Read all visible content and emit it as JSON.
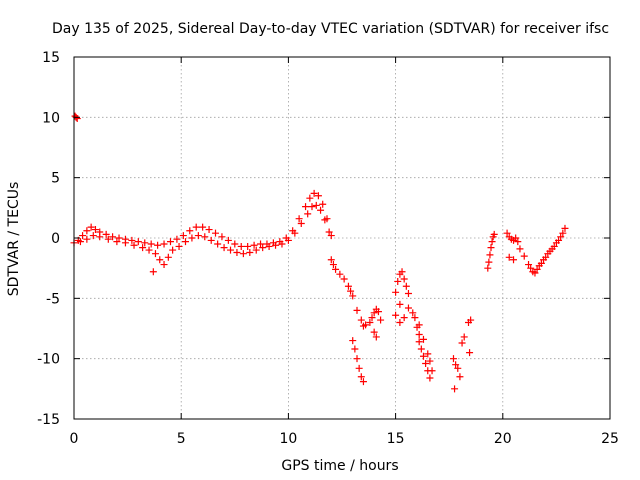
{
  "chart_data": {
    "type": "scatter",
    "title": "Day 135 of 2025, Sidereal Day-to-day VTEC variation (SDTVAR) for receiver ifsc",
    "xlabel": "GPS time / hours",
    "ylabel": "SDTVAR / TECUs",
    "xlim": [
      0,
      25
    ],
    "ylim": [
      -15,
      15
    ],
    "xticks": [
      0,
      5,
      10,
      15,
      20,
      25
    ],
    "yticks": [
      -15,
      -10,
      -5,
      0,
      5,
      10,
      15
    ],
    "xtick_labels": [
      "0",
      "5",
      "10",
      "15",
      "20",
      "25"
    ],
    "ytick_labels": [
      "-15",
      "-10",
      "-5",
      "0",
      "5",
      "10",
      "15"
    ],
    "grid": true,
    "marker": "+",
    "color": "#ff0000",
    "series": [
      {
        "name": "SDTVAR",
        "points": [
          [
            0.05,
            10.1
          ],
          [
            0.1,
            10.0
          ],
          [
            0.15,
            9.9
          ],
          [
            0.0,
            -0.4
          ],
          [
            0.2,
            -0.2
          ],
          [
            0.4,
            0.2
          ],
          [
            0.6,
            0.6
          ],
          [
            0.8,
            0.9
          ],
          [
            1.0,
            0.7
          ],
          [
            1.2,
            0.5
          ],
          [
            1.5,
            0.3
          ],
          [
            1.8,
            0.1
          ],
          [
            2.1,
            0.0
          ],
          [
            2.4,
            -0.1
          ],
          [
            2.7,
            -0.2
          ],
          [
            3.0,
            -0.3
          ],
          [
            3.3,
            -0.4
          ],
          [
            3.6,
            -0.5
          ],
          [
            3.9,
            -0.6
          ],
          [
            4.2,
            -0.5
          ],
          [
            4.5,
            -0.3
          ],
          [
            4.8,
            -0.1
          ],
          [
            5.1,
            0.2
          ],
          [
            5.4,
            0.6
          ],
          [
            5.7,
            0.9
          ],
          [
            6.0,
            0.9
          ],
          [
            6.3,
            0.7
          ],
          [
            6.6,
            0.4
          ],
          [
            6.9,
            0.1
          ],
          [
            7.2,
            -0.2
          ],
          [
            7.5,
            -0.5
          ],
          [
            7.8,
            -0.7
          ],
          [
            8.1,
            -0.7
          ],
          [
            8.4,
            -0.6
          ],
          [
            8.7,
            -0.5
          ],
          [
            9.0,
            -0.5
          ],
          [
            9.3,
            -0.4
          ],
          [
            9.6,
            -0.3
          ],
          [
            9.9,
            0.0
          ],
          [
            10.2,
            0.6
          ],
          [
            10.5,
            1.6
          ],
          [
            10.8,
            2.6
          ],
          [
            11.0,
            3.3
          ],
          [
            11.2,
            3.7
          ],
          [
            11.4,
            3.5
          ],
          [
            11.6,
            2.8
          ],
          [
            11.8,
            1.6
          ],
          [
            12.0,
            0.2
          ],
          [
            0.3,
            -0.3
          ],
          [
            0.6,
            -0.1
          ],
          [
            0.9,
            0.2
          ],
          [
            1.2,
            0.1
          ],
          [
            1.6,
            -0.1
          ],
          [
            2.0,
            -0.3
          ],
          [
            2.4,
            -0.4
          ],
          [
            2.8,
            -0.6
          ],
          [
            3.2,
            -0.8
          ],
          [
            3.5,
            -1.0
          ],
          [
            3.8,
            -1.3
          ],
          [
            4.0,
            -1.8
          ],
          [
            4.2,
            -2.2
          ],
          [
            3.7,
            -2.8
          ],
          [
            4.4,
            -1.6
          ],
          [
            4.6,
            -1.0
          ],
          [
            4.9,
            -0.7
          ],
          [
            5.2,
            -0.3
          ],
          [
            5.5,
            0.0
          ],
          [
            5.8,
            0.2
          ],
          [
            6.1,
            0.1
          ],
          [
            6.4,
            -0.2
          ],
          [
            6.7,
            -0.5
          ],
          [
            7.0,
            -0.8
          ],
          [
            7.3,
            -1.0
          ],
          [
            7.6,
            -1.2
          ],
          [
            7.9,
            -1.3
          ],
          [
            8.2,
            -1.2
          ],
          [
            8.5,
            -1.0
          ],
          [
            8.8,
            -0.8
          ],
          [
            9.1,
            -0.7
          ],
          [
            9.4,
            -0.6
          ],
          [
            9.7,
            -0.5
          ],
          [
            10.0,
            -0.2
          ],
          [
            10.3,
            0.4
          ],
          [
            10.6,
            1.2
          ],
          [
            10.9,
            2.0
          ],
          [
            11.1,
            2.6
          ],
          [
            11.3,
            2.7
          ],
          [
            11.5,
            2.3
          ],
          [
            11.7,
            1.5
          ],
          [
            11.9,
            0.5
          ],
          [
            12.0,
            -1.8
          ],
          [
            12.1,
            -2.2
          ],
          [
            12.2,
            -2.6
          ],
          [
            12.4,
            -3.0
          ],
          [
            12.6,
            -3.4
          ],
          [
            12.8,
            -4.0
          ],
          [
            13.0,
            -4.8
          ],
          [
            12.9,
            -4.4
          ],
          [
            13.2,
            -6.0
          ],
          [
            13.4,
            -6.8
          ],
          [
            13.5,
            -7.3
          ],
          [
            13.6,
            -7.2
          ],
          [
            13.8,
            -7.0
          ],
          [
            13.9,
            -6.6
          ],
          [
            14.0,
            -6.2
          ],
          [
            14.1,
            -5.9
          ],
          [
            14.2,
            -6.1
          ],
          [
            14.3,
            -6.8
          ],
          [
            14.0,
            -7.8
          ],
          [
            14.1,
            -8.2
          ],
          [
            13.0,
            -8.5
          ],
          [
            13.1,
            -9.2
          ],
          [
            13.2,
            -10.0
          ],
          [
            13.3,
            -10.8
          ],
          [
            13.4,
            -11.5
          ],
          [
            13.5,
            -11.9
          ],
          [
            15.0,
            -4.5
          ],
          [
            15.1,
            -3.6
          ],
          [
            15.2,
            -3.0
          ],
          [
            15.3,
            -2.8
          ],
          [
            15.4,
            -3.4
          ],
          [
            15.5,
            -4.0
          ],
          [
            15.6,
            -4.6
          ],
          [
            15.2,
            -5.5
          ],
          [
            15.0,
            -6.4
          ],
          [
            15.2,
            -7.0
          ],
          [
            15.4,
            -6.6
          ],
          [
            15.6,
            -5.8
          ],
          [
            15.8,
            -6.2
          ],
          [
            15.9,
            -6.6
          ],
          [
            16.0,
            -7.4
          ],
          [
            16.1,
            -8.0
          ],
          [
            16.1,
            -8.6
          ],
          [
            16.2,
            -9.2
          ],
          [
            16.3,
            -9.8
          ],
          [
            16.4,
            -10.4
          ],
          [
            16.5,
            -11.0
          ],
          [
            16.6,
            -11.6
          ],
          [
            16.7,
            -11.0
          ],
          [
            16.5,
            -9.6
          ],
          [
            16.3,
            -8.4
          ],
          [
            16.1,
            -7.2
          ],
          [
            16.6,
            -10.2
          ],
          [
            17.7,
            -10.0
          ],
          [
            17.8,
            -10.5
          ],
          [
            17.9,
            -10.8
          ],
          [
            17.75,
            -12.5
          ],
          [
            18.0,
            -11.5
          ],
          [
            18.1,
            -8.7
          ],
          [
            18.2,
            -8.2
          ],
          [
            18.4,
            -7.0
          ],
          [
            18.5,
            -6.8
          ],
          [
            18.45,
            -9.5
          ],
          [
            19.3,
            -2.5
          ],
          [
            19.35,
            -2.0
          ],
          [
            19.4,
            -1.4
          ],
          [
            19.45,
            -0.8
          ],
          [
            19.5,
            -0.3
          ],
          [
            19.55,
            0.1
          ],
          [
            19.6,
            0.3
          ],
          [
            20.2,
            0.4
          ],
          [
            20.3,
            0.1
          ],
          [
            20.4,
            -0.1
          ],
          [
            20.5,
            -0.2
          ],
          [
            20.6,
            0.0
          ],
          [
            20.7,
            -0.3
          ],
          [
            20.3,
            -1.6
          ],
          [
            20.5,
            -1.8
          ],
          [
            20.8,
            -0.9
          ],
          [
            21.0,
            -1.5
          ],
          [
            21.2,
            -2.2
          ],
          [
            21.4,
            -2.8
          ],
          [
            21.6,
            -2.6
          ],
          [
            21.8,
            -2.1
          ],
          [
            22.0,
            -1.6
          ],
          [
            22.2,
            -1.1
          ],
          [
            22.4,
            -0.7
          ],
          [
            22.6,
            -0.2
          ],
          [
            22.8,
            0.4
          ],
          [
            22.9,
            0.8
          ],
          [
            21.3,
            -2.5
          ],
          [
            21.5,
            -2.9
          ],
          [
            21.7,
            -2.3
          ],
          [
            21.9,
            -1.8
          ],
          [
            22.1,
            -1.3
          ],
          [
            22.3,
            -0.9
          ],
          [
            22.5,
            -0.4
          ],
          [
            22.7,
            0.1
          ]
        ]
      }
    ]
  }
}
